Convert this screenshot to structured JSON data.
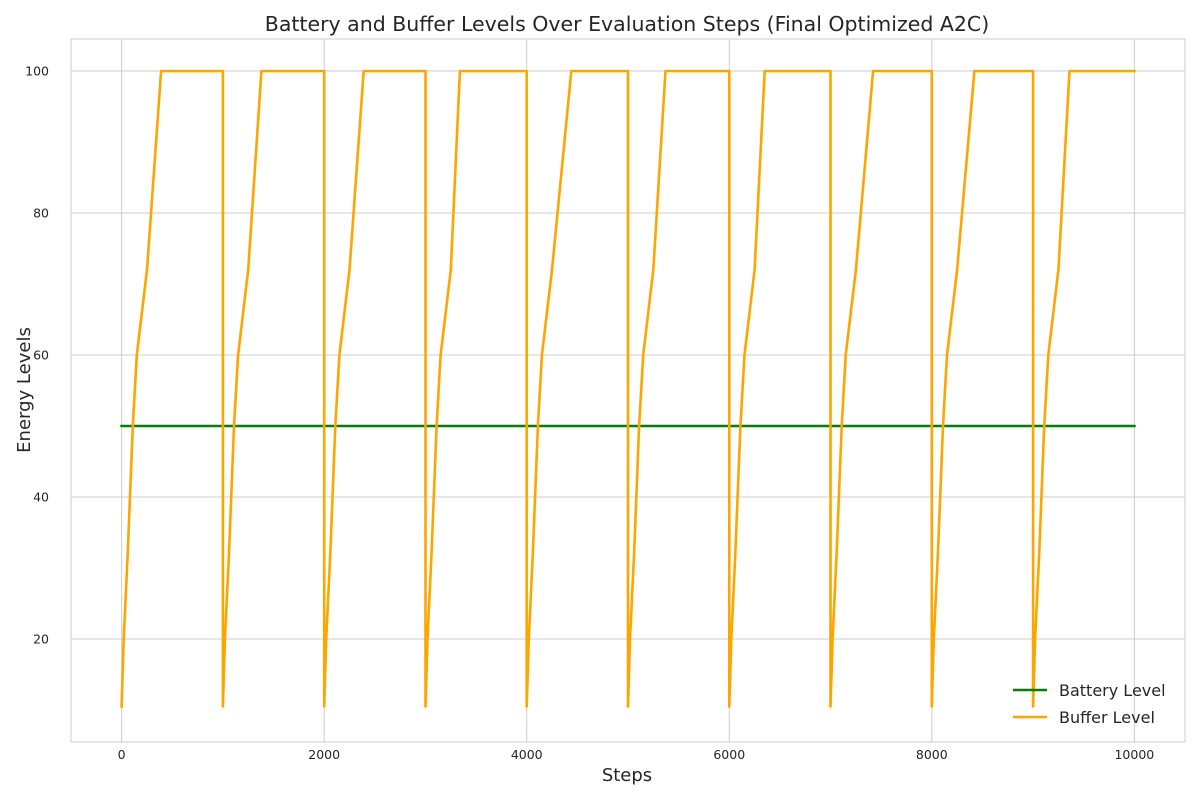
{
  "chart_data": {
    "type": "line",
    "title": "Battery and Buffer Levels Over Evaluation Steps (Final Optimized A2C)",
    "xlabel": "Steps",
    "ylabel": "Energy Levels",
    "xlim": [
      -500,
      10500
    ],
    "ylim": [
      5.5,
      104.5
    ],
    "xticks": [
      0,
      2000,
      4000,
      6000,
      8000,
      10000
    ],
    "yticks": [
      20,
      40,
      60,
      80,
      100
    ],
    "xtick_labels": [
      "0",
      "2000",
      "4000",
      "6000",
      "8000",
      "10000"
    ],
    "ytick_labels": [
      "20",
      "40",
      "60",
      "80",
      "100"
    ],
    "grid": true,
    "legend_position": "lower-right",
    "series": [
      {
        "name": "Battery Level",
        "color": "#008000",
        "x": [
          0,
          10000
        ],
        "y": [
          50,
          50
        ]
      },
      {
        "name": "Buffer Level",
        "color": "#FFA500",
        "x": [
          0,
          20,
          60,
          110,
          150,
          250,
          390,
          1000,
          1000,
          1020,
          1060,
          1110,
          1150,
          1250,
          1380,
          2000,
          2000,
          2020,
          2060,
          2110,
          2150,
          2250,
          2390,
          3000,
          3000,
          3020,
          3060,
          3110,
          3150,
          3250,
          3340,
          4000,
          4000,
          4020,
          4060,
          4110,
          4150,
          4250,
          4440,
          5000,
          5000,
          5020,
          5060,
          5110,
          5150,
          5250,
          5370,
          6000,
          6000,
          6020,
          6060,
          6110,
          6150,
          6250,
          6350,
          7000,
          7000,
          7020,
          7060,
          7110,
          7150,
          7250,
          7420,
          8000,
          8000,
          8020,
          8060,
          8110,
          8150,
          8250,
          8420,
          9000,
          9000,
          9020,
          9060,
          9110,
          9150,
          9250,
          9360,
          10000
        ],
        "y": [
          10.5,
          20,
          32,
          50,
          60,
          72,
          100,
          100,
          10.5,
          20,
          32,
          50,
          60,
          72,
          100,
          100,
          10.5,
          20,
          32,
          50,
          60,
          72,
          100,
          100,
          10.5,
          20,
          32,
          50,
          60,
          72,
          100,
          100,
          10.5,
          20,
          32,
          50,
          60,
          72,
          100,
          100,
          10.5,
          20,
          32,
          50,
          60,
          72,
          100,
          100,
          10.5,
          20,
          32,
          50,
          60,
          72,
          100,
          100,
          10.5,
          20,
          32,
          50,
          60,
          72,
          100,
          100,
          10.5,
          20,
          32,
          50,
          60,
          72,
          100,
          100,
          10.5,
          20,
          32,
          50,
          60,
          72,
          100,
          100
        ]
      }
    ]
  }
}
